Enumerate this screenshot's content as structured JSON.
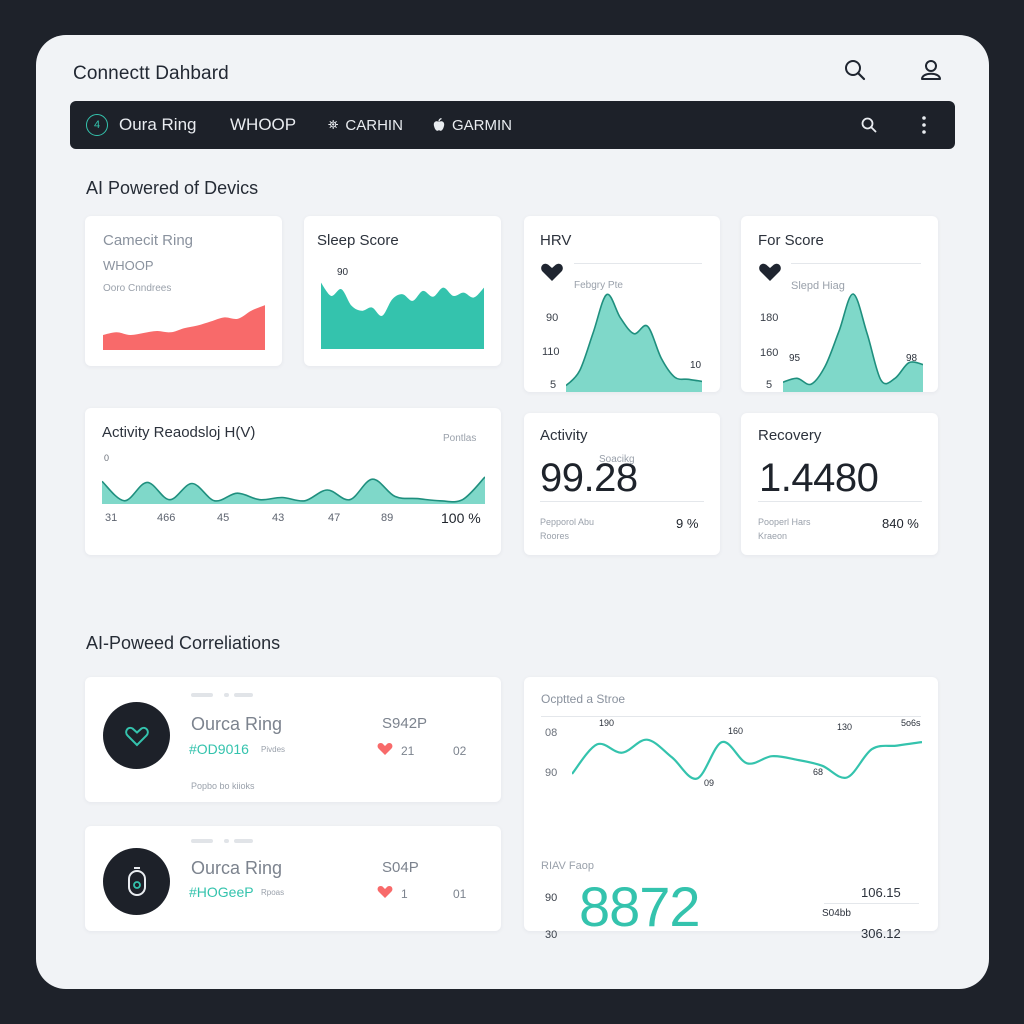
{
  "header": {
    "title": "Connectt Dahbard",
    "search_icon": "search-icon",
    "profile_icon": "user-icon"
  },
  "navbar": {
    "items": [
      {
        "label": "Oura Ring",
        "icon_text": "4"
      },
      {
        "label": "WHOOP"
      },
      {
        "label": "CARHIN",
        "icon": "garmin-logo-icon"
      },
      {
        "label": "GARMIN",
        "icon": "apple-icon"
      }
    ],
    "search_icon": "search-icon",
    "menu_icon": "more-vertical-icon"
  },
  "section1": {
    "title": "AI Powered of Devics"
  },
  "cards": {
    "device": {
      "title": "Camecit Ring",
      "subtitle": "WHOOP",
      "caption": "Ooro Cnndrees",
      "color": "#f86a6a"
    },
    "sleep": {
      "title": "Sleep Score",
      "axis_label": "90",
      "color": "#34c3ad"
    },
    "hrv": {
      "title": "HRV",
      "sublabel": "Febgry Pte",
      "ticks": [
        "90",
        "110",
        "5"
      ],
      "peak_label": "10"
    },
    "for": {
      "title": "For Score",
      "sublabel": "Slepd Hiag",
      "ticks": [
        "180",
        "160",
        "5"
      ],
      "left_label": "95",
      "right_label": "98"
    },
    "activity_chart": {
      "title": "Activity Reaodsloj H(V)",
      "corner_label": "Pontlas",
      "left_tick": "0",
      "x_ticks": [
        "31",
        "466",
        "45",
        "43",
        "47",
        "89"
      ],
      "percent": "100 %"
    },
    "activity_stat": {
      "title": "Activity",
      "sublabel": "Soacikg",
      "value": "99.28",
      "caption_line1": "Pepporol Abu",
      "caption_line2": "Roores",
      "percent": "9 %"
    },
    "recovery": {
      "title": "Recovery",
      "value": "1.4480",
      "caption_line1": "Pooperl Hars",
      "caption_line2": "Kraeon",
      "percent": "840 %"
    }
  },
  "section2": {
    "title": "AI-Poweed Correliations"
  },
  "devices": [
    {
      "name": "Ourca Ring",
      "code": "#OD9016",
      "code_small": "Pivdes",
      "value": "S942P",
      "heart_value": "21",
      "side_value": "02",
      "footer": "Popbo bo kiioks",
      "icon": "heart-icon"
    },
    {
      "name": "Ourca Ring",
      "code": "#HOGeeP",
      "code_small": "Rpoas",
      "value": "S04P",
      "heart_value": "1",
      "side_value": "01",
      "icon": "ring-device-icon"
    }
  ],
  "correlation": {
    "title": "Ocptted a Stroe",
    "y_ticks": [
      "08",
      "90"
    ],
    "peak_labels": [
      "190",
      "160",
      "130",
      "5o6s"
    ],
    "trough_labels": [
      "09",
      "68"
    ],
    "hrv_label": "RIAV Faop",
    "hrv_ticks": [
      "90",
      "30"
    ],
    "big_value": "8872",
    "right_top": "106.15",
    "right_mid": "S04bb",
    "right_bottom": "306.12"
  },
  "colors": {
    "accent": "#34c3ad",
    "accent_light": "#7fd8c9",
    "coral": "#f86a6a",
    "dark": "#1d2129"
  },
  "chart_data": [
    {
      "type": "area",
      "title": "",
      "values": [
        22,
        26,
        22,
        25,
        28,
        26,
        32,
        36,
        42,
        48,
        46,
        58,
        66
      ]
    },
    {
      "type": "area",
      "title": "",
      "values": [
        80,
        64,
        72,
        52,
        46,
        50,
        40,
        60,
        66,
        58,
        70,
        63,
        74,
        64,
        68,
        62,
        74
      ]
    },
    {
      "type": "area",
      "title": "",
      "values": [
        6,
        20,
        56,
        92,
        70,
        55,
        62,
        32,
        14,
        12,
        10
      ]
    },
    {
      "type": "area",
      "title": "",
      "values": [
        10,
        14,
        8,
        26,
        62,
        100,
        60,
        12,
        14,
        30,
        28
      ]
    },
    {
      "type": "area",
      "title": "",
      "values": [
        42,
        6,
        40,
        8,
        38,
        6,
        20,
        8,
        12,
        6,
        26,
        8,
        46,
        14,
        10,
        6,
        8,
        50
      ]
    },
    {
      "type": "line",
      "title": "",
      "values": [
        12,
        62,
        48,
        70,
        40,
        4,
        66,
        30,
        42,
        36,
        26,
        6,
        54,
        60,
        66
      ]
    }
  ]
}
